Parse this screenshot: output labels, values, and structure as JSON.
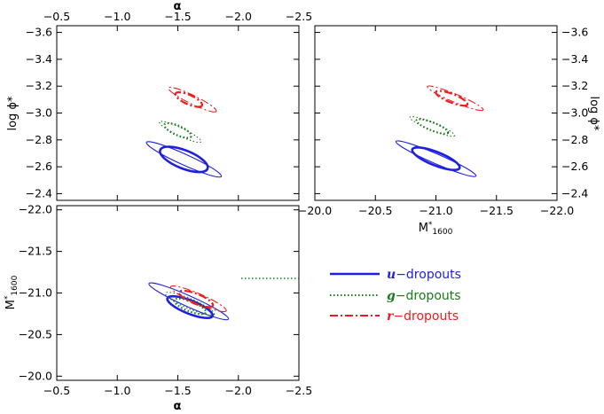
{
  "colors": {
    "u": "#1f1fe0",
    "g": "#1a7a1a",
    "r": "#ee1c1c",
    "axis": "#000000"
  },
  "chart_data": [
    {
      "id": "alpha-vs-logphi",
      "type": "scatter",
      "xlim": [
        -0.5,
        -2.5
      ],
      "ylim": [
        -3.65,
        -2.35
      ],
      "xticks": [
        -0.5,
        -1.0,
        -1.5,
        -2.0,
        -2.5
      ],
      "xtick_labels": [
        "−0.5",
        "−1.0",
        "−1.5",
        "−2.0",
        "−2.5"
      ],
      "yticks": [
        -2.4,
        -2.6,
        -2.8,
        -3.0,
        -3.2,
        -3.4,
        -3.6
      ],
      "ytick_labels": [
        "−2.4",
        "−2.6",
        "−2.8",
        "−3.0",
        "−3.2",
        "−3.4",
        "−3.6"
      ],
      "xlabel_top": "α",
      "ylabel": "log ϕ*",
      "series": [
        {
          "name": "u",
          "contours": [
            {
              "level": "inner",
              "center": [
                -1.55,
                -2.655
              ],
              "halfwidth": 0.21,
              "halfheight": 0.068,
              "slope": 0.55
            },
            {
              "level": "outer",
              "center": [
                -1.55,
                -2.655
              ],
              "halfwidth": 0.34,
              "halfheight": 0.04,
              "slope": 0.63
            }
          ]
        },
        {
          "name": "g",
          "contours": [
            {
              "level": "inner",
              "center": [
                -1.5,
                -2.87
              ],
              "halfwidth": 0.12,
              "halfheight": 0.035,
              "slope": 0.62
            },
            {
              "level": "outer",
              "center": [
                -1.52,
                -2.86
              ],
              "halfwidth": 0.19,
              "halfheight": 0.03,
              "slope": 0.66
            }
          ]
        },
        {
          "name": "r",
          "contours": [
            {
              "level": "inner",
              "center": [
                -1.59,
                -3.1
              ],
              "halfwidth": 0.12,
              "halfheight": 0.035,
              "slope": 0.62
            },
            {
              "level": "outer",
              "center": [
                -1.62,
                -3.1
              ],
              "halfwidth": 0.22,
              "halfheight": 0.032,
              "slope": 0.68
            }
          ]
        }
      ]
    },
    {
      "id": "mstar-vs-logphi",
      "type": "scatter",
      "xlim": [
        -20.0,
        -22.0
      ],
      "ylim": [
        -3.65,
        -2.35
      ],
      "xticks": [
        -20.0,
        -20.5,
        -21.0,
        -21.5,
        -22.0
      ],
      "xtick_labels": [
        "−20.0",
        "−20.5",
        "−21.0",
        "−21.5",
        "−22.0"
      ],
      "yticks": [
        -2.4,
        -2.6,
        -2.8,
        -3.0,
        -3.2,
        -3.4,
        -3.6
      ],
      "ytick_labels": [
        "−2.4",
        "−2.6",
        "−2.8",
        "−3.0",
        "−3.2",
        "−3.4",
        "−3.6"
      ],
      "xlabel": "M*1600",
      "ylabel_right": "log ϕ*",
      "series": [
        {
          "name": "u",
          "contours": [
            {
              "level": "inner",
              "center": [
                -21.0,
                -2.66
              ],
              "halfwidth": 0.21,
              "halfheight": 0.05,
              "slope": 0.55
            },
            {
              "level": "outer",
              "center": [
                -21.0,
                -2.66
              ],
              "halfwidth": 0.36,
              "halfheight": 0.036,
              "slope": 0.6
            }
          ]
        },
        {
          "name": "g",
          "contours": [
            {
              "level": "inner",
              "center": [
                -20.97,
                -2.9
              ],
              "halfwidth": 0.14,
              "halfheight": 0.03,
              "slope": 0.55
            },
            {
              "level": "outer",
              "center": [
                -20.97,
                -2.9
              ],
              "halfwidth": 0.2,
              "halfheight": 0.028,
              "slope": 0.57
            }
          ]
        },
        {
          "name": "r",
          "contours": [
            {
              "level": "inner",
              "center": [
                -21.13,
                -3.11
              ],
              "halfwidth": 0.14,
              "halfheight": 0.032,
              "slope": 0.55
            },
            {
              "level": "outer",
              "center": [
                -21.16,
                -3.11
              ],
              "halfwidth": 0.25,
              "halfheight": 0.03,
              "slope": 0.58
            }
          ]
        }
      ]
    },
    {
      "id": "alpha-vs-mstar",
      "type": "scatter",
      "xlim": [
        -0.5,
        -2.5
      ],
      "ylim": [
        -22.05,
        -19.95
      ],
      "xticks": [
        -0.5,
        -1.0,
        -1.5,
        -2.0,
        -2.5
      ],
      "xtick_labels": [
        "−0.5",
        "−1.0",
        "−1.5",
        "−2.0",
        "−2.5"
      ],
      "yticks": [
        -20.0,
        -20.5,
        -21.0,
        -21.5,
        -22.0
      ],
      "ytick_labels": [
        "−20.0",
        "−20.5",
        "−21.0",
        "−21.5",
        "−22.0"
      ],
      "xlabel": "α",
      "ylabel": "M*1600",
      "series": [
        {
          "name": "u",
          "contours": [
            {
              "level": "inner",
              "center": [
                -1.6,
                -20.83
              ],
              "halfwidth": 0.2,
              "halfheight": 0.08,
              "slope": 0.55
            },
            {
              "level": "outer",
              "center": [
                -1.59,
                -20.9
              ],
              "halfwidth": 0.36,
              "halfheight": 0.065,
              "slope": 0.62
            }
          ]
        },
        {
          "name": "g",
          "contours": [
            {
              "level": "inner",
              "center": [
                -1.6,
                -20.84
              ],
              "halfwidth": 0.14,
              "halfheight": 0.06,
              "slope": 0.55
            },
            {
              "level": "outer",
              "center": [
                -1.6,
                -20.87
              ],
              "halfwidth": 0.22,
              "halfheight": 0.06,
              "slope": 0.6
            }
          ]
        },
        {
          "name": "r",
          "contours": [
            {
              "level": "inner",
              "center": [
                -1.65,
                -20.93
              ],
              "halfwidth": 0.15,
              "halfheight": 0.06,
              "slope": 0.55
            },
            {
              "level": "outer",
              "center": [
                -1.67,
                -20.93
              ],
              "halfwidth": 0.25,
              "halfheight": 0.06,
              "slope": 0.6
            }
          ]
        }
      ]
    }
  ],
  "legend": [
    {
      "key": "u",
      "italic": "u",
      "rest": "−dropouts"
    },
    {
      "key": "g",
      "italic": "g",
      "rest": "−dropouts"
    },
    {
      "key": "r",
      "italic": "r",
      "rest": "−dropouts"
    }
  ]
}
